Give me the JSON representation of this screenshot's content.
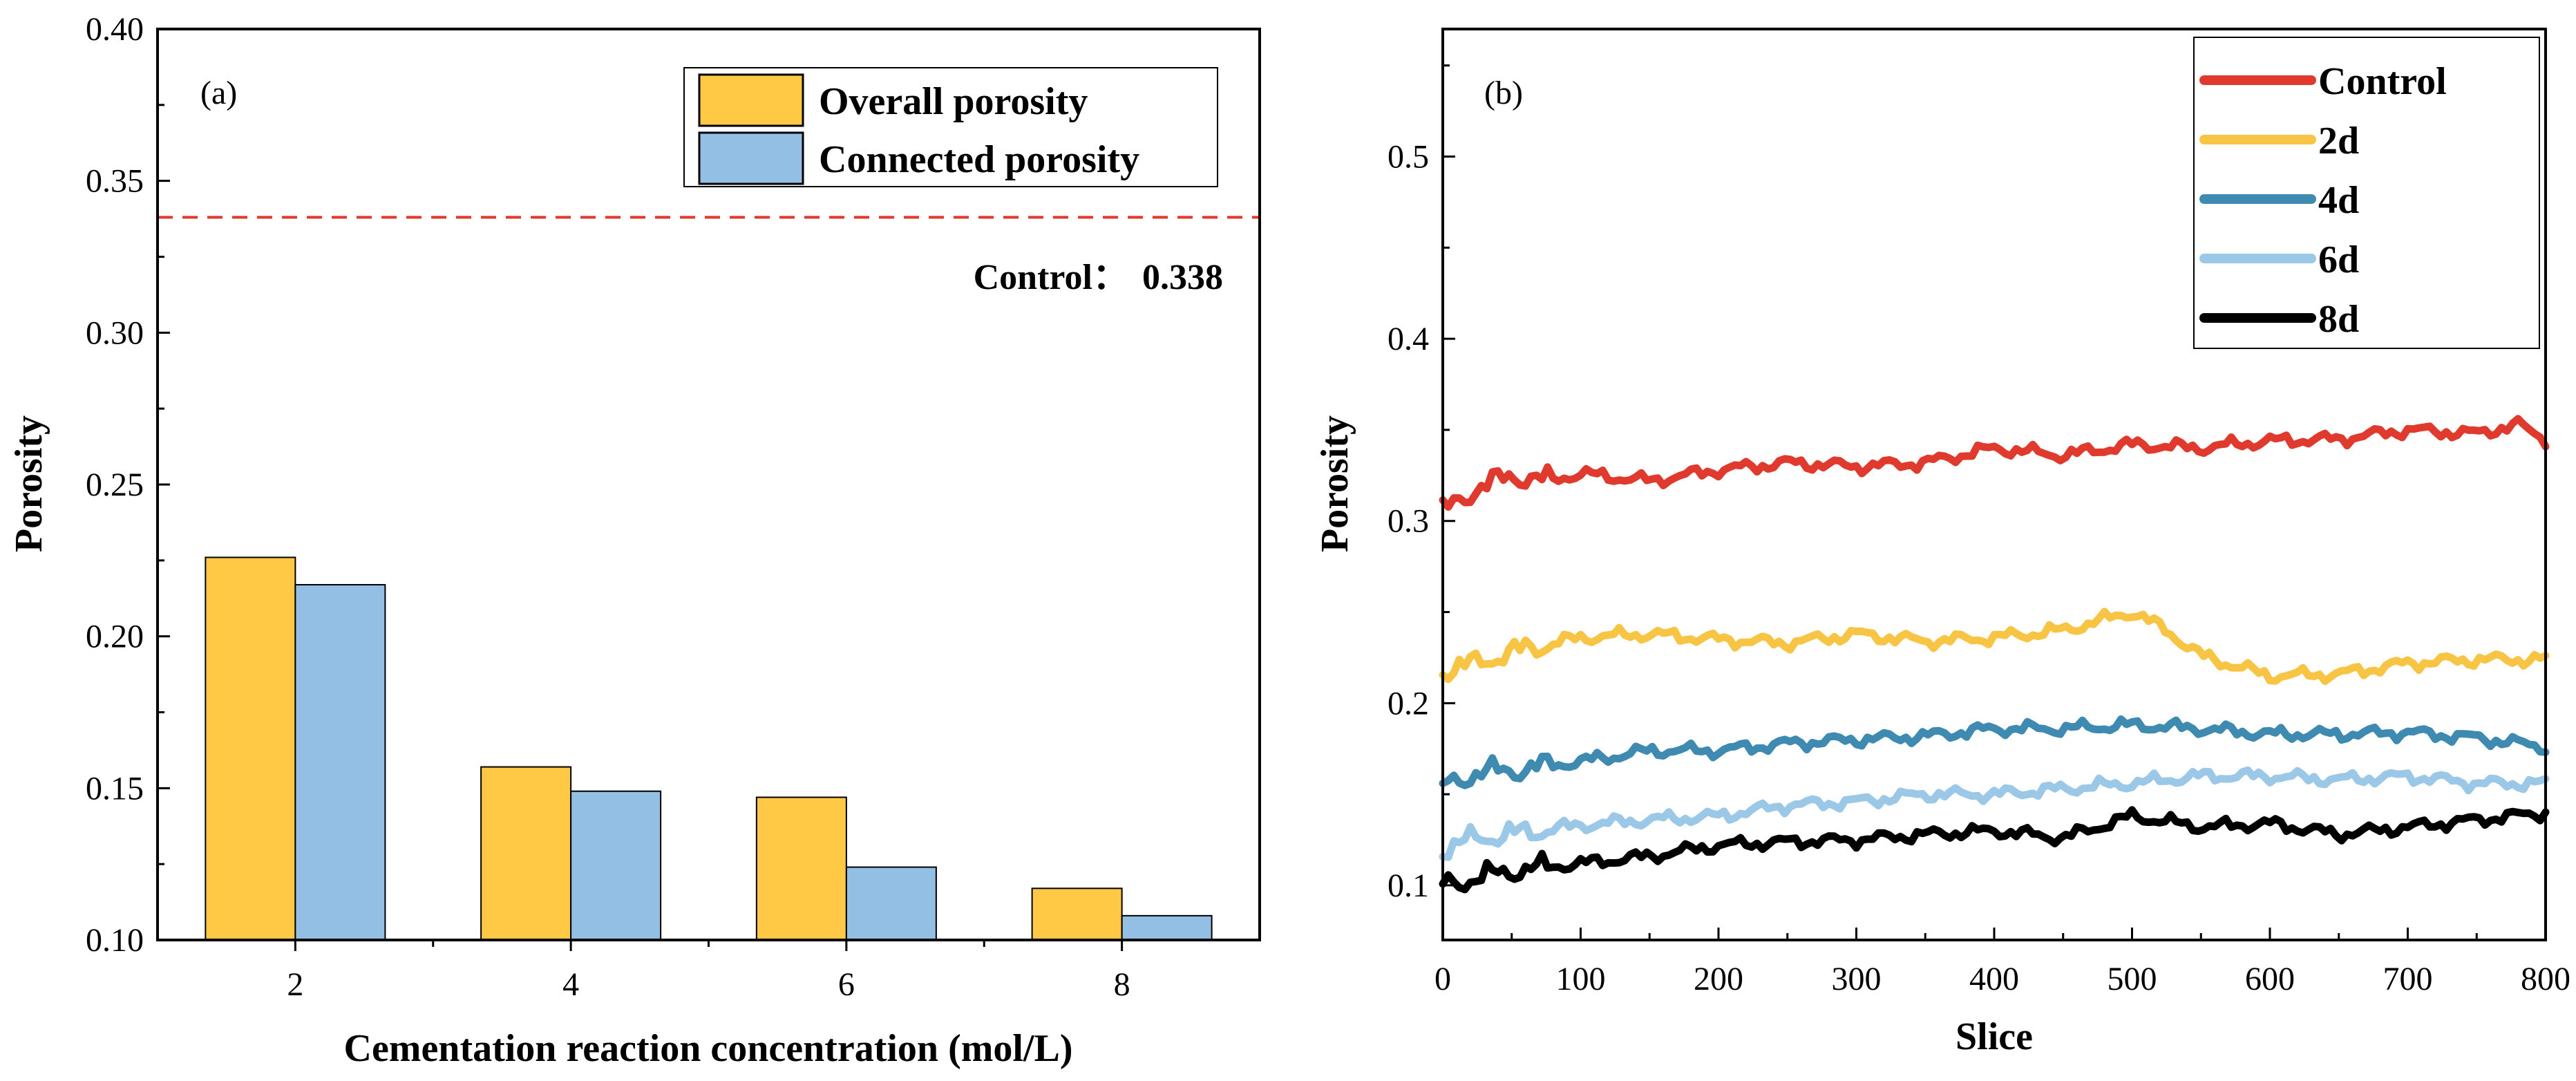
{
  "colors": {
    "overall": "#FFC845",
    "connected": "#92BFE3",
    "control_line": "#E03A2E",
    "d2": "#F8C443",
    "d4": "#3E8AB0",
    "d6": "#9CC8E8",
    "d8": "#000000"
  },
  "chart_data": [
    {
      "type": "bar",
      "panel_label": "(a)",
      "xlabel": "Cementation reaction concentration (mol/L)",
      "ylabel": "Porosity",
      "categories": [
        "2",
        "4",
        "6",
        "8"
      ],
      "ylim": [
        0.1,
        0.4
      ],
      "yticks": [
        "0.10",
        "0.15",
        "0.20",
        "0.25",
        "0.30",
        "0.35",
        "0.40"
      ],
      "series": [
        {
          "name": "Overall porosity",
          "values": [
            0.226,
            0.157,
            0.147,
            0.117
          ]
        },
        {
          "name": "Connected porosity",
          "values": [
            0.217,
            0.149,
            0.124,
            0.108
          ]
        }
      ],
      "reference_line": {
        "value": 0.338,
        "label": "Control：",
        "value_label": "0.338"
      },
      "legend": "top-right"
    },
    {
      "type": "line",
      "panel_label": "(b)",
      "xlabel": "Slice",
      "ylabel": "Porosity",
      "xlim": [
        0,
        800
      ],
      "ylim": [
        0.07,
        0.57
      ],
      "xticks": [
        "0",
        "100",
        "200",
        "300",
        "400",
        "500",
        "600",
        "700",
        "800"
      ],
      "yticks": [
        "0.1",
        "0.2",
        "0.3",
        "0.4",
        "0.5"
      ],
      "legend": "top-right",
      "series": [
        {
          "name": "Control",
          "x": [
            0,
            25,
            50,
            75,
            100,
            150,
            200,
            250,
            300,
            350,
            400,
            450,
            500,
            550,
            600,
            650,
            700,
            750,
            780,
            800
          ],
          "y": [
            0.305,
            0.318,
            0.325,
            0.322,
            0.326,
            0.322,
            0.328,
            0.332,
            0.33,
            0.332,
            0.34,
            0.336,
            0.342,
            0.34,
            0.344,
            0.345,
            0.35,
            0.348,
            0.353,
            0.345
          ]
        },
        {
          "name": "2d",
          "x": [
            0,
            25,
            50,
            75,
            100,
            150,
            200,
            250,
            300,
            350,
            400,
            450,
            500,
            525,
            550,
            600,
            650,
            700,
            750,
            800
          ],
          "y": [
            0.218,
            0.222,
            0.228,
            0.232,
            0.236,
            0.238,
            0.235,
            0.233,
            0.238,
            0.234,
            0.236,
            0.24,
            0.25,
            0.24,
            0.226,
            0.215,
            0.216,
            0.222,
            0.224,
            0.224
          ]
        },
        {
          "name": "4d",
          "x": [
            0,
            25,
            50,
            100,
            150,
            200,
            250,
            300,
            350,
            400,
            450,
            500,
            550,
            600,
            650,
            700,
            750,
            800
          ],
          "y": [
            0.154,
            0.162,
            0.163,
            0.168,
            0.174,
            0.174,
            0.178,
            0.18,
            0.182,
            0.186,
            0.186,
            0.188,
            0.186,
            0.183,
            0.183,
            0.184,
            0.181,
            0.176
          ]
        },
        {
          "name": "6d",
          "x": [
            0,
            25,
            50,
            100,
            150,
            200,
            250,
            300,
            350,
            400,
            450,
            500,
            550,
            600,
            650,
            700,
            750,
            800
          ],
          "y": [
            0.12,
            0.126,
            0.128,
            0.133,
            0.136,
            0.138,
            0.144,
            0.146,
            0.15,
            0.15,
            0.153,
            0.156,
            0.16,
            0.16,
            0.158,
            0.16,
            0.156,
            0.156
          ]
        },
        {
          "name": "8d",
          "x": [
            0,
            25,
            50,
            100,
            150,
            200,
            250,
            300,
            350,
            400,
            450,
            500,
            550,
            600,
            650,
            700,
            750,
            800
          ],
          "y": [
            0.1,
            0.104,
            0.108,
            0.112,
            0.116,
            0.122,
            0.124,
            0.125,
            0.128,
            0.13,
            0.126,
            0.138,
            0.132,
            0.134,
            0.128,
            0.132,
            0.136,
            0.14
          ]
        }
      ]
    }
  ]
}
